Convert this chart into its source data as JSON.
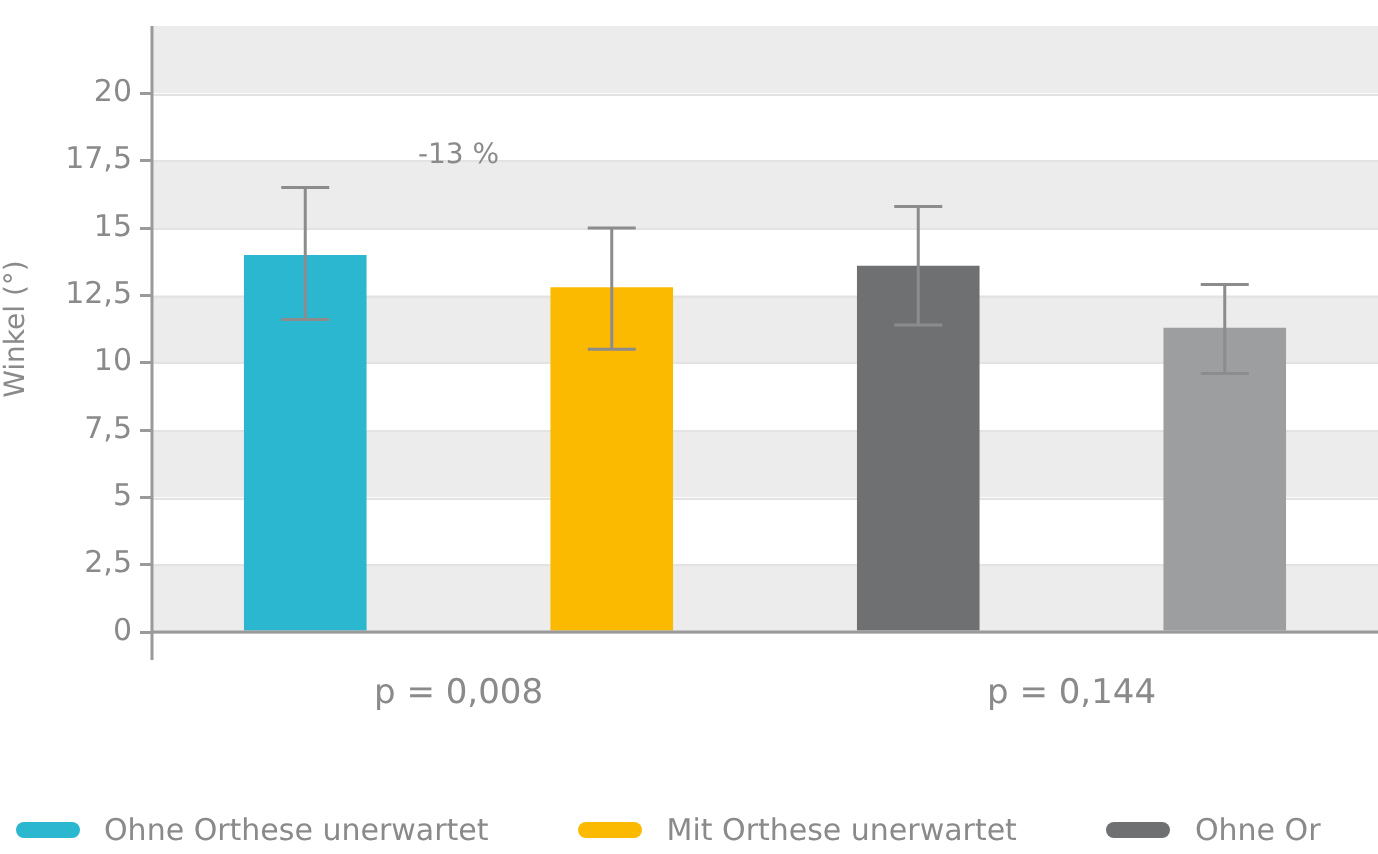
{
  "chart_data": {
    "type": "bar",
    "ylabel": "Winkel (°)",
    "categories": [
      null,
      null,
      null,
      null
    ],
    "series": [
      {
        "name": "Ohne Orthese unerwartet",
        "color": "#2bb7d0",
        "values": [
          14.0,
          null,
          null,
          null
        ],
        "errors": [
          [
            11.6,
            16.5
          ],
          null,
          null,
          null
        ]
      },
      {
        "name": "Mit Orthese unerwartet",
        "color": "#fbba00",
        "values": [
          null,
          12.8,
          null,
          null
        ],
        "errors": [
          null,
          [
            10.5,
            15.0
          ],
          null,
          null
        ]
      },
      {
        "name": "Ohne Or",
        "color": "#6f7072",
        "values": [
          null,
          null,
          13.6,
          null
        ],
        "errors": [
          null,
          null,
          [
            11.4,
            15.8
          ],
          null
        ]
      },
      {
        "color": "#9d9e9f",
        "values": [
          null,
          null,
          null,
          11.3
        ],
        "errors": [
          null,
          null,
          null,
          [
            9.6,
            12.9
          ]
        ]
      }
    ],
    "ylim": [
      0,
      22.5
    ],
    "yticks": [
      0,
      {
        "value": 2.5,
        "label": "2,5"
      },
      5,
      {
        "value": 7.5,
        "label": "7,5"
      },
      10,
      {
        "value": 12.5,
        "label": "12,5"
      },
      15,
      {
        "value": 17.5,
        "label": "17,5"
      },
      20
    ],
    "grid": "y",
    "tick_labels": "y",
    "legend": "bottom",
    "annotations": [
      "-13 %",
      "p = 0,008",
      "p = 0,144"
    ]
  }
}
